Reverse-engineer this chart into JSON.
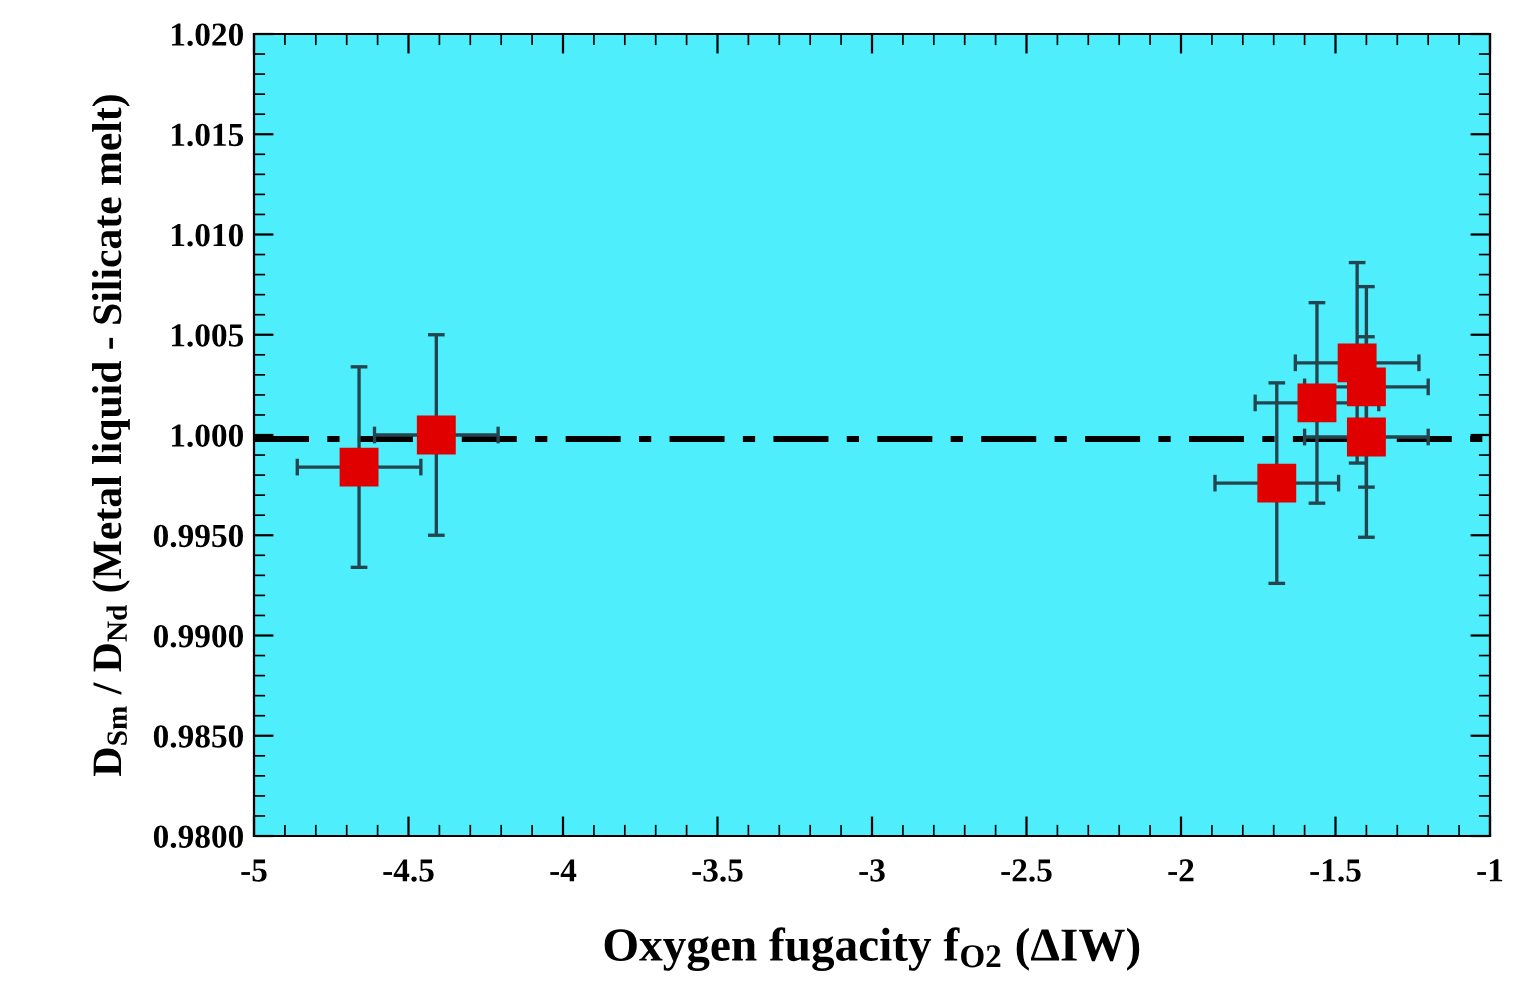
{
  "chart_data": {
    "type": "scatter",
    "xlabel": "Oxygen fugacity f$_{O2}$ (ΔIW)",
    "ylabel": "D$_{Sm}$ / D$_{Nd}$ (Metal liquid - Silicate melt)",
    "x": [
      -4.66,
      -4.41,
      -1.69,
      -1.56,
      -1.43,
      -1.4,
      -1.4
    ],
    "series": [
      {
        "color": "#e00000",
        "values": [
          0.9984,
          1.0,
          0.9976,
          1.0016,
          1.0036,
          1.0024,
          0.9999
        ],
        "errors": [
          0.005,
          0.005,
          0.005,
          0.005,
          0.005,
          0.005,
          0.005
        ],
        "xerrors": [
          0.2,
          0.2,
          0.2,
          0.2,
          0.2,
          0.2,
          0.2
        ]
      }
    ],
    "marker": "square",
    "xlim": [
      -5,
      -1
    ],
    "ylim": [
      0.98,
      1.02
    ],
    "xticks": [
      -5,
      {
        "value": -4.5,
        "label": "-4.5"
      },
      -4,
      {
        "value": -3.5,
        "label": "-3.5"
      },
      -3,
      {
        "value": -2.5,
        "label": "-2.5"
      },
      -2,
      {
        "value": -1.5,
        "label": "-1.5"
      },
      -1
    ],
    "yticks": [
      {
        "value": 0.98,
        "label": "0.9800"
      },
      {
        "value": 0.985,
        "label": "0.9850"
      },
      {
        "value": 0.99,
        "label": "0.9900"
      },
      {
        "value": 0.995,
        "label": "0.9950"
      },
      {
        "value": 1.0,
        "label": "1.000"
      },
      {
        "value": 1.005,
        "label": "1.005"
      },
      {
        "value": 1.01,
        "label": "1.010"
      },
      {
        "value": 1.015,
        "label": "1.015"
      },
      {
        "value": 1.02,
        "label": "1.020"
      }
    ],
    "ref_lines": [
      {
        "axis": "y",
        "value": 0.9998,
        "color": "#000000",
        "line_style": "dashed"
      }
    ]
  }
}
